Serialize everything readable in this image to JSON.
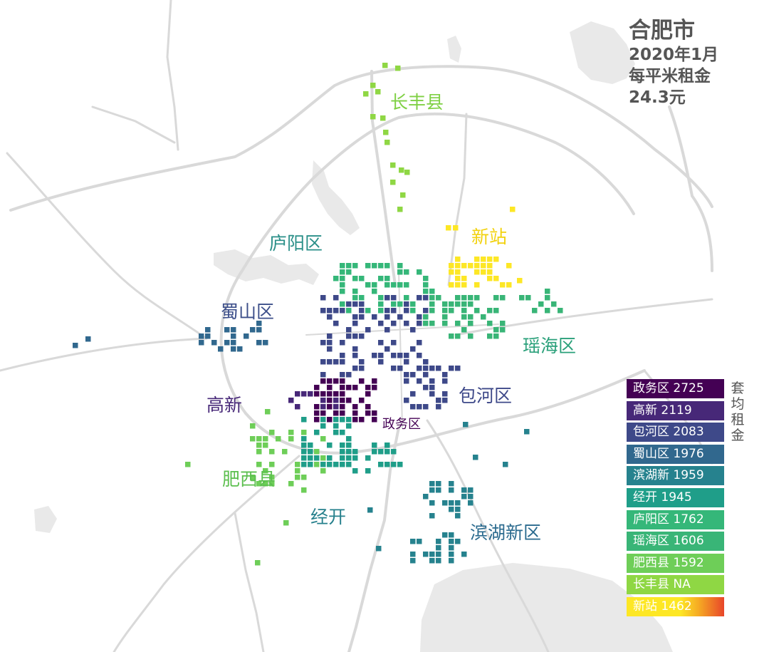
{
  "title": {
    "city": "合肥市",
    "date": "2020年1月",
    "metric": "每平米租金",
    "value": "24.3元"
  },
  "colors": {
    "zhengwu": "#440154",
    "gaoxin": "#472878",
    "baohe": "#3e4989",
    "shushan": "#31688e",
    "binhu": "#26828e",
    "jingkai": "#1f9e89",
    "luyang": "#35b779",
    "yaohai": "#39b577",
    "feixi": "#6ece58",
    "changfeng": "#8fd744",
    "xinzhan": "#fde725"
  },
  "districts": [
    {
      "key": "changfeng",
      "label": "长丰县"
    },
    {
      "key": "xinzhan",
      "label": "新站"
    },
    {
      "key": "luyang",
      "label": "庐阳区"
    },
    {
      "key": "shushan",
      "label": "蜀山区"
    },
    {
      "key": "yaohai",
      "label": "瑶海区"
    },
    {
      "key": "gaoxin",
      "label": "高新"
    },
    {
      "key": "baohe",
      "label": "包河区"
    },
    {
      "key": "zhengwu",
      "label": "政务区"
    },
    {
      "key": "feixi",
      "label": "肥西县"
    },
    {
      "key": "jingkai",
      "label": "经开"
    },
    {
      "key": "binhu",
      "label": "滨湖新区"
    }
  ],
  "legend": {
    "side_label": "套均租金",
    "items": [
      {
        "label": "政务区 2725",
        "color": "#440154"
      },
      {
        "label": "高新 2119",
        "color": "#472878"
      },
      {
        "label": "包河区 2083",
        "color": "#3e4989"
      },
      {
        "label": "蜀山区 1976",
        "color": "#31688e"
      },
      {
        "label": "滨湖新 1959",
        "color": "#26828e"
      },
      {
        "label": "经开 1945",
        "color": "#1f9e89"
      },
      {
        "label": "庐阳区 1762",
        "color": "#35b779"
      },
      {
        "label": "瑶海区 1606",
        "color": "#39b577"
      },
      {
        "label": "肥西县 1592",
        "color": "#6ece58"
      },
      {
        "label": "长丰县 NA",
        "color": "#8fd744"
      },
      {
        "label": "新站 1462",
        "color": "#fde725"
      }
    ]
  }
}
